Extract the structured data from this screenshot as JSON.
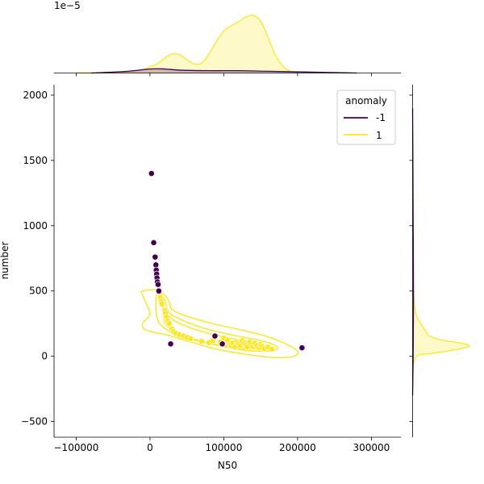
{
  "chart_data": {
    "type": "scatter",
    "title": "",
    "xlabel": "N50",
    "ylabel": "number",
    "xlim": [
      -130000,
      340000
    ],
    "ylim": [
      -620,
      2080
    ],
    "xticks": [
      -100000,
      0,
      100000,
      200000,
      300000
    ],
    "xtick_labels": [
      "−100000",
      "0",
      "100000",
      "200000",
      "300000"
    ],
    "yticks": [
      -500,
      0,
      500,
      1000,
      1500,
      2000
    ],
    "ytick_labels": [
      "−500",
      "0",
      "500",
      "1000",
      "1500",
      "2000"
    ],
    "top_marginal_offset_label": "1e−5",
    "grid": false,
    "legend": {
      "title": "anomaly",
      "placement": "top-right",
      "entries": [
        "-1",
        "1"
      ]
    },
    "colors": {
      "-1": "#440154",
      "1": "#fde725"
    },
    "series": [
      {
        "name": "-1",
        "points": [
          [
            2000,
            1400
          ],
          [
            5000,
            870
          ],
          [
            7000,
            760
          ],
          [
            8000,
            700
          ],
          [
            8500,
            660
          ],
          [
            9000,
            630
          ],
          [
            9500,
            600
          ],
          [
            10000,
            570
          ],
          [
            11000,
            550
          ],
          [
            12000,
            500
          ],
          [
            28000,
            95
          ],
          [
            88000,
            155
          ],
          [
            98000,
            95
          ],
          [
            206000,
            65
          ]
        ]
      },
      {
        "name": "1",
        "points": [
          [
            13000,
            480
          ],
          [
            14000,
            450
          ],
          [
            15000,
            420
          ],
          [
            16000,
            400
          ],
          [
            20000,
            350
          ],
          [
            21000,
            330
          ],
          [
            22000,
            300
          ],
          [
            24000,
            270
          ],
          [
            26000,
            250
          ],
          [
            30000,
            210
          ],
          [
            32000,
            190
          ],
          [
            35000,
            175
          ],
          [
            40000,
            165
          ],
          [
            45000,
            155
          ],
          [
            50000,
            145
          ],
          [
            55000,
            135
          ],
          [
            70000,
            115
          ],
          [
            80000,
            105
          ],
          [
            85000,
            120
          ],
          [
            95000,
            110
          ],
          [
            100000,
            140
          ],
          [
            105000,
            125
          ],
          [
            108000,
            90
          ],
          [
            110000,
            80
          ],
          [
            112000,
            100
          ],
          [
            115000,
            70
          ],
          [
            118000,
            110
          ],
          [
            120000,
            95
          ],
          [
            122000,
            80
          ],
          [
            125000,
            120
          ],
          [
            128000,
            100
          ],
          [
            130000,
            85
          ],
          [
            132000,
            70
          ],
          [
            135000,
            110
          ],
          [
            138000,
            90
          ],
          [
            140000,
            75
          ],
          [
            142000,
            100
          ],
          [
            145000,
            80
          ],
          [
            148000,
            65
          ],
          [
            150000,
            90
          ],
          [
            152000,
            75
          ],
          [
            155000,
            60
          ],
          [
            160000,
            70
          ],
          [
            165000,
            55
          ]
        ]
      }
    ],
    "kde_top": [
      {
        "name": "1",
        "x": [
          -100000,
          -40000,
          -10000,
          0,
          10000,
          20000,
          30000,
          40000,
          50000,
          60000,
          70000,
          80000,
          90000,
          100000,
          110000,
          120000,
          130000,
          140000,
          150000,
          160000,
          170000,
          180000,
          190000,
          200000
        ],
        "y": [
          0,
          0.01,
          0.06,
          0.11,
          0.16,
          0.26,
          0.33,
          0.32,
          0.23,
          0.16,
          0.17,
          0.33,
          0.55,
          0.73,
          0.82,
          0.89,
          0.97,
          1.0,
          0.9,
          0.62,
          0.31,
          0.12,
          0.03,
          0
        ]
      },
      {
        "name": "-1",
        "x": [
          -80000,
          -30000,
          0,
          20000,
          40000,
          80000,
          120000,
          160000,
          200000,
          240000,
          280000
        ],
        "y": [
          0,
          0.03,
          0.07,
          0.07,
          0.05,
          0.04,
          0.04,
          0.03,
          0.02,
          0.01,
          0
        ]
      }
    ],
    "kde_right": [
      {
        "name": "1",
        "y": [
          -100,
          0,
          20,
          40,
          60,
          80,
          100,
          120,
          140,
          160,
          180,
          200,
          240,
          280,
          320,
          400,
          470,
          560
        ],
        "density": [
          0,
          0.07,
          0.32,
          0.62,
          0.87,
          1.0,
          0.86,
          0.57,
          0.38,
          0.28,
          0.25,
          0.22,
          0.16,
          0.1,
          0.06,
          0.03,
          0.02,
          0
        ]
      },
      {
        "name": "-1",
        "y": [
          -300,
          0,
          500,
          1000,
          1500,
          1900
        ],
        "density": [
          0,
          0.01,
          0.015,
          0.01,
          0.005,
          0
        ]
      }
    ],
    "contours": [
      {
        "name": "1",
        "level": "outer",
        "points": [
          [
            -10000,
            500
          ],
          [
            12000,
            505
          ],
          [
            25000,
            430
          ],
          [
            30000,
            360
          ],
          [
            48000,
            310
          ],
          [
            85000,
            250
          ],
          [
            125000,
            200
          ],
          [
            165000,
            140
          ],
          [
            198000,
            50
          ],
          [
            195000,
            0
          ],
          [
            170000,
            -10
          ],
          [
            130000,
            15
          ],
          [
            90000,
            55
          ],
          [
            55000,
            110
          ],
          [
            25000,
            160
          ],
          [
            -5000,
            200
          ],
          [
            -10000,
            250
          ],
          [
            0,
            320
          ],
          [
            -5000,
            400
          ],
          [
            -10000,
            470
          ],
          [
            -10000,
            500
          ]
        ]
      },
      {
        "name": "1",
        "level": "middle",
        "points": [
          [
            10000,
            480
          ],
          [
            20000,
            430
          ],
          [
            24000,
            350
          ],
          [
            35000,
            300
          ],
          [
            70000,
            220
          ],
          [
            110000,
            165
          ],
          [
            150000,
            120
          ],
          [
            172000,
            75
          ],
          [
            165000,
            40
          ],
          [
            130000,
            45
          ],
          [
            95000,
            80
          ],
          [
            60000,
            125
          ],
          [
            30000,
            180
          ],
          [
            12000,
            260
          ],
          [
            8000,
            380
          ],
          [
            10000,
            480
          ]
        ]
      },
      {
        "name": "1",
        "level": "inner",
        "points": [
          [
            18000,
            390
          ],
          [
            22000,
            330
          ],
          [
            40000,
            250
          ],
          [
            80000,
            175
          ],
          [
            125000,
            120
          ],
          [
            155000,
            85
          ],
          [
            145000,
            55
          ],
          [
            110000,
            70
          ],
          [
            75000,
            110
          ],
          [
            40000,
            170
          ],
          [
            22000,
            240
          ],
          [
            18000,
            320
          ],
          [
            18000,
            390
          ]
        ]
      },
      {
        "name": "1",
        "level": "core",
        "points": [
          [
            105000,
            105
          ],
          [
            135000,
            95
          ],
          [
            150000,
            75
          ],
          [
            135000,
            60
          ],
          [
            110000,
            70
          ],
          [
            100000,
            90
          ],
          [
            105000,
            105
          ]
        ]
      }
    ]
  }
}
